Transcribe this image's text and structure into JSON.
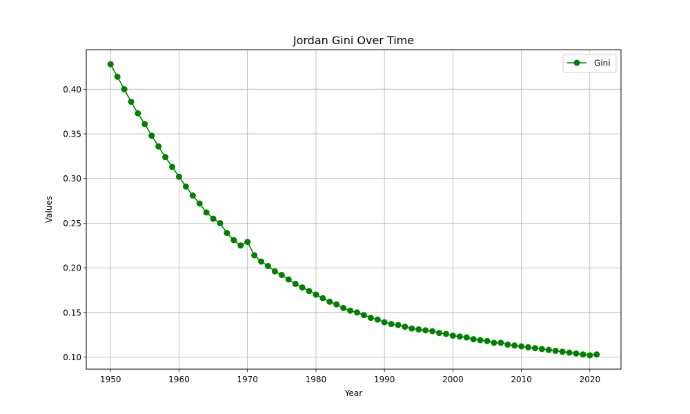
{
  "chart_data": {
    "type": "line",
    "title": "Jordan Gini Over Time",
    "xlabel": "Year",
    "ylabel": "Values",
    "xlim": [
      1946.45,
      2024.55
    ],
    "ylim": [
      0.0865,
      0.4443
    ],
    "x_ticks": [
      1950,
      1960,
      1970,
      1980,
      1990,
      2000,
      2010,
      2020
    ],
    "y_ticks": [
      0.1,
      0.15,
      0.2,
      0.25,
      0.3,
      0.35,
      0.4
    ],
    "x_tick_labels": [
      "1950",
      "1960",
      "1970",
      "1980",
      "1990",
      "2000",
      "2010",
      "2020"
    ],
    "y_tick_labels": [
      "0.10",
      "0.15",
      "0.20",
      "0.25",
      "0.30",
      "0.35",
      "0.40"
    ],
    "grid": true,
    "legend_position": "top-right",
    "series": [
      {
        "name": "Gini",
        "color": "#008000",
        "marker": "circle",
        "x": [
          1950,
          1951,
          1952,
          1953,
          1954,
          1955,
          1956,
          1957,
          1958,
          1959,
          1960,
          1961,
          1962,
          1963,
          1964,
          1965,
          1966,
          1967,
          1968,
          1969,
          1970,
          1971,
          1972,
          1973,
          1974,
          1975,
          1976,
          1977,
          1978,
          1979,
          1980,
          1981,
          1982,
          1983,
          1984,
          1985,
          1986,
          1987,
          1988,
          1989,
          1990,
          1991,
          1992,
          1993,
          1994,
          1995,
          1996,
          1997,
          1998,
          1999,
          2000,
          2001,
          2002,
          2003,
          2004,
          2005,
          2006,
          2007,
          2008,
          2009,
          2010,
          2011,
          2012,
          2013,
          2014,
          2015,
          2016,
          2017,
          2018,
          2019,
          2020,
          2021
        ],
        "values": [
          0.428,
          0.414,
          0.4,
          0.386,
          0.373,
          0.361,
          0.348,
          0.336,
          0.324,
          0.313,
          0.302,
          0.291,
          0.281,
          0.272,
          0.262,
          0.255,
          0.25,
          0.239,
          0.231,
          0.225,
          0.229,
          0.214,
          0.207,
          0.202,
          0.196,
          0.192,
          0.187,
          0.182,
          0.178,
          0.174,
          0.17,
          0.166,
          0.162,
          0.159,
          0.155,
          0.152,
          0.15,
          0.147,
          0.144,
          0.142,
          0.139,
          0.137,
          0.136,
          0.134,
          0.132,
          0.131,
          0.13,
          0.129,
          0.127,
          0.126,
          0.124,
          0.123,
          0.122,
          0.12,
          0.119,
          0.118,
          0.116,
          0.116,
          0.114,
          0.113,
          0.112,
          0.111,
          0.11,
          0.109,
          0.108,
          0.107,
          0.106,
          0.105,
          0.104,
          0.103,
          0.102,
          0.103
        ]
      }
    ]
  }
}
